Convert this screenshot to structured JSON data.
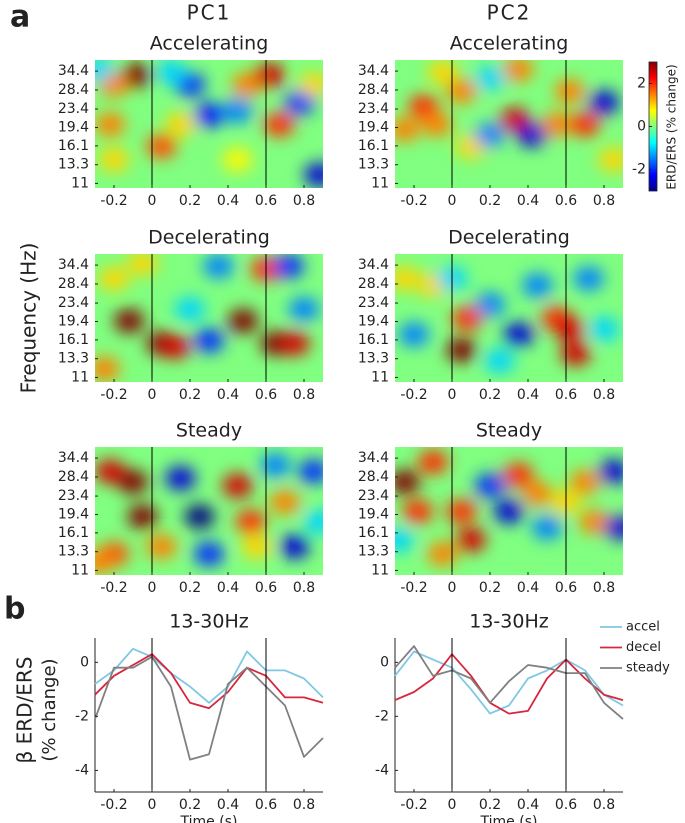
{
  "panel_labels": [
    "a",
    "b"
  ],
  "column_titles": [
    "PC1",
    "PC2"
  ],
  "heatmap_ylabel": "Frequency (Hz)",
  "line_ylabel": [
    "β ERD/ERS",
    "(% change)"
  ],
  "colorbar": {
    "label": "ERD/ERS (% change)",
    "clim": [
      -3,
      3
    ],
    "ticks": [
      -2,
      0,
      2
    ]
  },
  "chart_data": [
    {
      "type": "heatmap",
      "title": "Accelerating",
      "xlim": [
        -0.3,
        0.9
      ],
      "xticks": [
        -0.2,
        0,
        0.2,
        0.4,
        0.6,
        0.8
      ],
      "ylim": [
        10.5,
        38.5
      ],
      "yscale": "log",
      "yticks": [
        11,
        13.3,
        16.1,
        19.4,
        23.4,
        28.4,
        34.4
      ],
      "vlines": [
        0,
        0.6
      ],
      "blobs": {
        "x": [
          -0.08,
          -0.2,
          -0.22,
          -0.2,
          0.05,
          0.15,
          0.2,
          0.3,
          0.1,
          0.45,
          0.5,
          0.62,
          0.67,
          0.78,
          0.45,
          0.88,
          -0.28,
          0.85
        ],
        "freq": [
          33,
          30,
          20,
          14,
          16,
          20,
          30,
          22,
          34,
          14,
          30,
          33,
          20,
          25,
          23,
          12,
          35,
          30
        ],
        "values": [
          3,
          1.5,
          1.5,
          1,
          1.8,
          1,
          -2,
          -2.2,
          -1,
          0.8,
          1.5,
          2.5,
          2,
          -2,
          -1.5,
          -2.5,
          -1,
          1
        ]
      }
    },
    {
      "type": "heatmap",
      "title": "Accelerating",
      "xlim": [
        -0.3,
        0.9
      ],
      "xticks": [
        -0.2,
        0,
        0.2,
        0.4,
        0.6,
        0.8
      ],
      "ylim": [
        10.5,
        38.5
      ],
      "yscale": "log",
      "yticks": [
        11,
        13.3,
        16.1,
        19.4,
        23.4,
        28.4,
        34.4
      ],
      "vlines": [
        0,
        0.6
      ],
      "blobs": {
        "x": [
          -0.25,
          -0.15,
          -0.08,
          0.05,
          0.1,
          0.2,
          0.2,
          0.33,
          0.42,
          0.55,
          0.62,
          0.7,
          0.8,
          0.85,
          -0.05,
          0.35
        ],
        "freq": [
          19,
          24,
          20,
          28,
          16,
          32,
          18,
          21,
          18,
          20,
          28,
          20,
          25,
          14,
          34,
          35
        ],
        "values": [
          1.5,
          2,
          1.5,
          1.5,
          1,
          -1,
          -1.5,
          2.5,
          -2.5,
          1.5,
          1.5,
          2,
          -2.5,
          1,
          1,
          1.5
        ]
      }
    },
    {
      "type": "heatmap",
      "title": "Decelerating",
      "xlim": [
        -0.3,
        0.9
      ],
      "xticks": [
        -0.2,
        0,
        0.2,
        0.4,
        0.6,
        0.8
      ],
      "ylim": [
        10.5,
        38.5
      ],
      "yscale": "log",
      "yticks": [
        11,
        13.3,
        16.1,
        19.4,
        23.4,
        28.4,
        34.4
      ],
      "vlines": [
        0,
        0.6
      ],
      "blobs": {
        "x": [
          -0.12,
          -0.2,
          0.05,
          0.12,
          0.3,
          0.2,
          0.48,
          0.6,
          0.65,
          0.75,
          0.8,
          -0.25,
          0.35,
          -0.05,
          0.72
        ],
        "freq": [
          19.5,
          30,
          15.5,
          15,
          16,
          22,
          19.5,
          33,
          15.5,
          15.5,
          22,
          12,
          34,
          35,
          34
        ],
        "values": [
          3,
          1,
          3,
          2.5,
          -2,
          -1,
          3,
          2,
          3,
          2.5,
          -1.5,
          1.5,
          -1.5,
          1,
          -2
        ]
      }
    },
    {
      "type": "heatmap",
      "title": "Decelerating",
      "xlim": [
        -0.3,
        0.9
      ],
      "xticks": [
        -0.2,
        0,
        0.2,
        0.4,
        0.6,
        0.8
      ],
      "ylim": [
        10.5,
        38.5
      ],
      "yscale": "log",
      "yticks": [
        11,
        13.3,
        16.1,
        19.4,
        23.4,
        28.4,
        34.4
      ],
      "vlines": [
        0,
        0.6
      ],
      "blobs": {
        "x": [
          -0.2,
          -0.1,
          0.05,
          0.08,
          0,
          0.2,
          0.35,
          0.45,
          0.55,
          0.62,
          0.65,
          0.72,
          0.8,
          -0.25,
          0.25
        ],
        "freq": [
          17,
          28,
          14.5,
          20,
          30,
          23,
          17,
          28,
          20,
          18,
          14,
          30,
          18,
          30,
          13
        ],
        "values": [
          -1.5,
          1,
          3,
          2,
          -1,
          -1.5,
          -2.5,
          -1.5,
          2,
          2.5,
          2.5,
          -1.5,
          -1,
          1,
          -1
        ]
      }
    },
    {
      "type": "heatmap",
      "title": "Steady",
      "xlim": [
        -0.3,
        0.9
      ],
      "xticks": [
        -0.2,
        0,
        0.2,
        0.4,
        0.6,
        0.8
      ],
      "ylim": [
        10.5,
        38.5
      ],
      "yscale": "log",
      "yticks": [
        11,
        13.3,
        16.1,
        19.4,
        23.4,
        28.4,
        34.4
      ],
      "vlines": [
        0,
        0.6
      ],
      "blobs": {
        "x": [
          -0.22,
          -0.1,
          -0.05,
          -0.2,
          -0.28,
          0.15,
          0.25,
          0.3,
          0.45,
          0.52,
          0.55,
          0.65,
          0.7,
          0.75,
          0.85,
          0.88,
          0.05
        ],
        "freq": [
          30,
          27,
          19,
          13,
          12,
          28,
          19,
          13,
          26,
          18,
          14,
          32,
          22,
          14,
          30,
          18,
          14
        ],
        "values": [
          2.5,
          3,
          3,
          1.8,
          1.5,
          -2.5,
          -3,
          -2,
          2.5,
          2,
          1,
          -1.5,
          1.5,
          -2.5,
          -2,
          -1,
          1.5
        ]
      }
    },
    {
      "type": "heatmap",
      "title": "Steady",
      "xlim": [
        -0.3,
        0.9
      ],
      "xticks": [
        -0.2,
        0,
        0.2,
        0.4,
        0.6,
        0.8
      ],
      "ylim": [
        10.5,
        38.5
      ],
      "yscale": "log",
      "yticks": [
        11,
        13.3,
        16.1,
        19.4,
        23.4,
        28.4,
        34.4
      ],
      "vlines": [
        0,
        0.6
      ],
      "blobs": {
        "x": [
          -0.25,
          -0.18,
          -0.1,
          0.05,
          0.1,
          -0.05,
          0.2,
          0.3,
          0.35,
          0.45,
          0.5,
          0.6,
          0.7,
          0.75,
          0.85,
          0.88,
          -0.28
        ],
        "freq": [
          27,
          20,
          33,
          20,
          15,
          13,
          26,
          20,
          29,
          24,
          17,
          22,
          27,
          18,
          30,
          17,
          15
        ],
        "values": [
          3,
          2,
          2,
          2,
          2.5,
          1.5,
          -2,
          -2.5,
          2,
          1.5,
          -1.5,
          1,
          1.5,
          1.5,
          -2.5,
          -2.5,
          -1
        ]
      }
    },
    {
      "type": "line",
      "title": "13-30Hz",
      "xlabel": "Time (s)",
      "xlim": [
        -0.3,
        0.9
      ],
      "xticks": [
        -0.2,
        0,
        0.2,
        0.4,
        0.6,
        0.8
      ],
      "ylim": [
        -4.8,
        0.9
      ],
      "yticks": [
        -4,
        -2,
        0
      ],
      "vlines": [
        0,
        0.6
      ],
      "x": [
        -0.3,
        -0.2,
        -0.1,
        0,
        0.1,
        0.2,
        0.3,
        0.4,
        0.5,
        0.6,
        0.7,
        0.8,
        0.9
      ],
      "series": [
        {
          "name": "accel",
          "color": "#7ec8e3",
          "values": [
            -0.8,
            -0.3,
            0.5,
            0.2,
            -0.4,
            -0.9,
            -1.5,
            -0.9,
            0.4,
            -0.3,
            -0.3,
            -0.6,
            -1.3
          ]
        },
        {
          "name": "decel",
          "color": "#d7263d",
          "values": [
            -1.2,
            -0.5,
            -0.1,
            0.3,
            -0.4,
            -1.5,
            -1.7,
            -1.1,
            -0.2,
            -0.5,
            -1.3,
            -1.3,
            -1.5
          ]
        },
        {
          "name": "steady",
          "color": "#808080",
          "values": [
            -2.1,
            -0.2,
            -0.2,
            0.2,
            -0.9,
            -3.6,
            -3.4,
            -0.8,
            -0.2,
            -0.9,
            -1.6,
            -3.5,
            -2.8
          ]
        }
      ]
    },
    {
      "type": "line",
      "title": "13-30Hz",
      "xlabel": "Time (s)",
      "xlim": [
        -0.3,
        0.9
      ],
      "xticks": [
        -0.2,
        0,
        0.2,
        0.4,
        0.6,
        0.8
      ],
      "ylim": [
        -4.8,
        0.9
      ],
      "yticks": [
        -4,
        -2,
        0
      ],
      "vlines": [
        0,
        0.6
      ],
      "legend": "right",
      "x": [
        -0.3,
        -0.2,
        -0.1,
        0,
        0.1,
        0.2,
        0.3,
        0.4,
        0.5,
        0.6,
        0.7,
        0.8,
        0.9
      ],
      "series": [
        {
          "name": "accel",
          "color": "#7ec8e3",
          "values": [
            -0.5,
            0.4,
            0.1,
            -0.2,
            -1,
            -1.9,
            -1.6,
            -0.6,
            -0.3,
            0.1,
            -0.3,
            -1.2,
            -1.6
          ]
        },
        {
          "name": "decel",
          "color": "#d7263d",
          "values": [
            -1.4,
            -1.1,
            -0.6,
            0.3,
            -0.5,
            -1.5,
            -1.9,
            -1.8,
            -0.6,
            0.1,
            -0.6,
            -1.2,
            -1.4
          ]
        },
        {
          "name": "steady",
          "color": "#808080",
          "values": [
            -0.2,
            0.6,
            -0.5,
            -0.3,
            -0.6,
            -1.5,
            -0.7,
            -0.1,
            -0.2,
            -0.4,
            -0.4,
            -1.5,
            -2.1
          ]
        }
      ]
    }
  ]
}
